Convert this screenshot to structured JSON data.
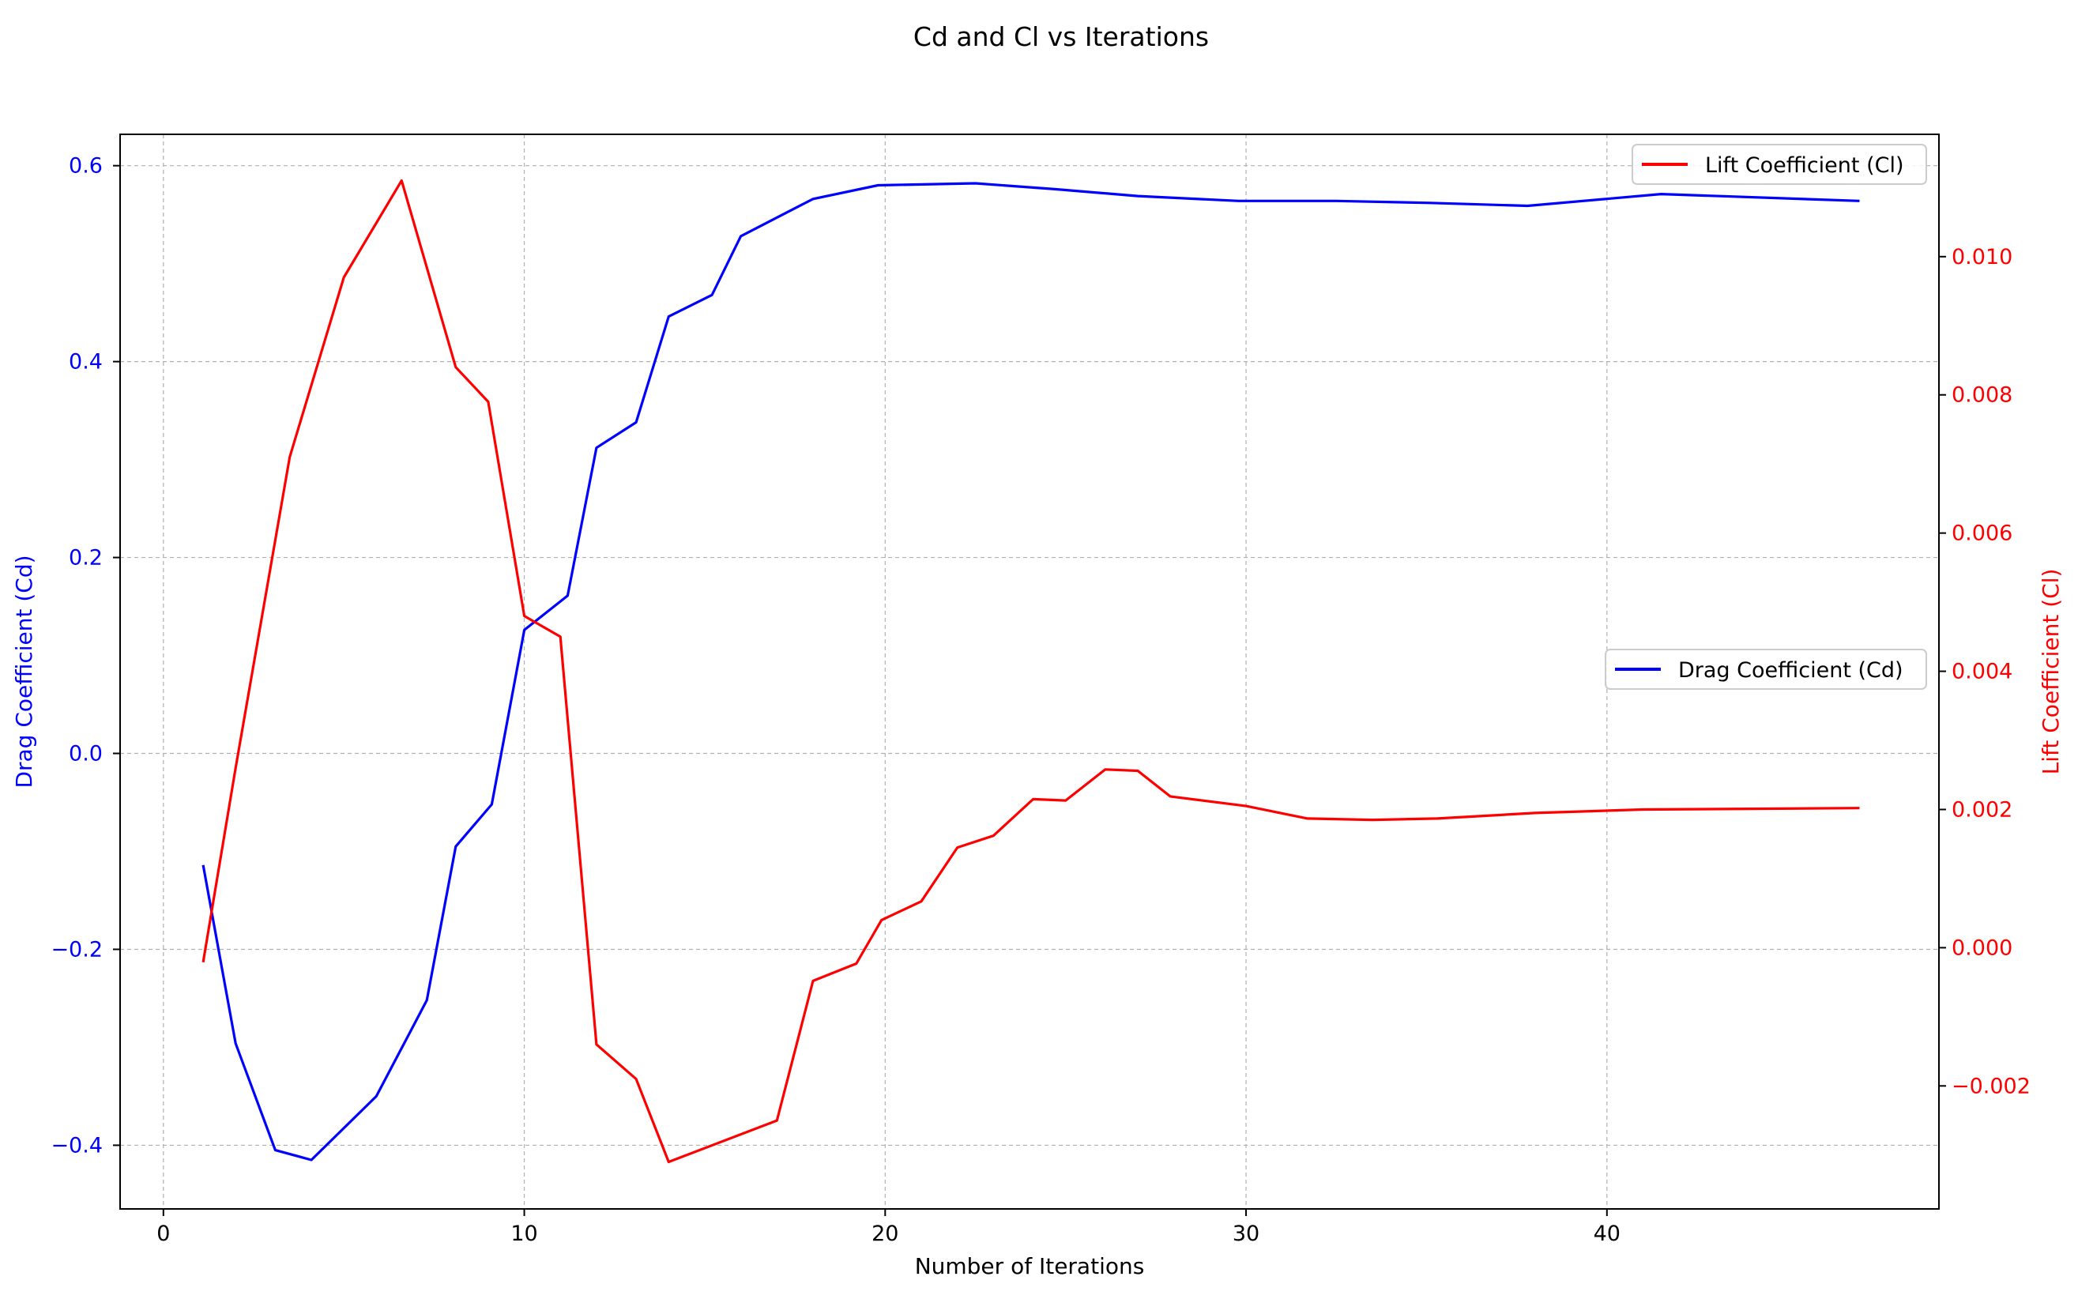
{
  "chart_data": {
    "type": "line",
    "title": "Cd and Cl vs Iterations",
    "xlabel": "Number of Iterations",
    "xlim": [
      -1.2,
      49.2
    ],
    "xticks": [
      0,
      10,
      20,
      30,
      40
    ],
    "grid": true,
    "left_axis": {
      "label": "Drag Coefficient (Cd)",
      "color": "#0000ff",
      "ylim": [
        -0.465,
        0.632
      ],
      "ticks": [
        -0.4,
        -0.2,
        0.0,
        0.2,
        0.4,
        0.6
      ],
      "tick_labels": [
        "−0.4",
        "−0.2",
        "0.0",
        "0.2",
        "0.4",
        "0.6"
      ]
    },
    "right_axis": {
      "label": "Lift Coefficient (Cl)",
      "color": "#ff0000",
      "ylim": [
        -0.00378,
        0.01177
      ],
      "ticks": [
        -0.002,
        0.0,
        0.002,
        0.004,
        0.006,
        0.008,
        0.01
      ],
      "tick_labels": [
        "−0.002",
        "0.000",
        "0.002",
        "0.004",
        "0.006",
        "0.008",
        "0.010"
      ]
    },
    "series": [
      {
        "name": "Drag Coefficient (Cd)",
        "axis": "left",
        "color": "#0000ff",
        "legend_position": "center-right",
        "x": [
          1.1,
          2.0,
          3.1,
          4.1,
          5.9,
          7.3,
          8.1,
          9.1,
          10.0,
          11.2,
          12.0,
          13.1,
          14.0,
          15.2,
          16.0,
          18.0,
          19.8,
          22.5,
          24.7,
          27.0,
          29.8,
          32.5,
          35.1,
          37.8,
          41.5,
          47.0
        ],
        "y": [
          -0.114,
          -0.296,
          -0.405,
          -0.415,
          -0.35,
          -0.252,
          -0.095,
          -0.052,
          0.126,
          0.161,
          0.312,
          0.338,
          0.446,
          0.468,
          0.528,
          0.566,
          0.58,
          0.582,
          0.576,
          0.569,
          0.564,
          0.564,
          0.562,
          0.559,
          0.571,
          0.564
        ]
      },
      {
        "name": "Lift Coefficient (Cl)",
        "axis": "right",
        "color": "#ff0000",
        "legend_position": "top-right",
        "x": [
          1.1,
          2.0,
          3.5,
          5.0,
          6.6,
          8.1,
          9.0,
          10.0,
          11.0,
          12.0,
          13.1,
          14.0,
          17.0,
          18.0,
          19.2,
          19.9,
          21.0,
          22.0,
          23.0,
          24.1,
          25.0,
          26.1,
          27.0,
          27.9,
          30.0,
          31.7,
          33.5,
          35.3,
          38.0,
          41.0,
          47.0
        ],
        "y": [
          -0.00021,
          0.0026,
          0.0071,
          0.0097,
          0.0111,
          0.0084,
          0.0079,
          0.0048,
          0.0045,
          -0.0014,
          -0.0019,
          -0.0031,
          -0.0025,
          -0.00048,
          -0.00023,
          0.0004,
          0.00067,
          0.00145,
          0.00162,
          0.00215,
          0.00213,
          0.00258,
          0.00256,
          0.00219,
          0.00205,
          0.00187,
          0.00185,
          0.00187,
          0.00195,
          0.002,
          0.00202
        ]
      }
    ]
  }
}
